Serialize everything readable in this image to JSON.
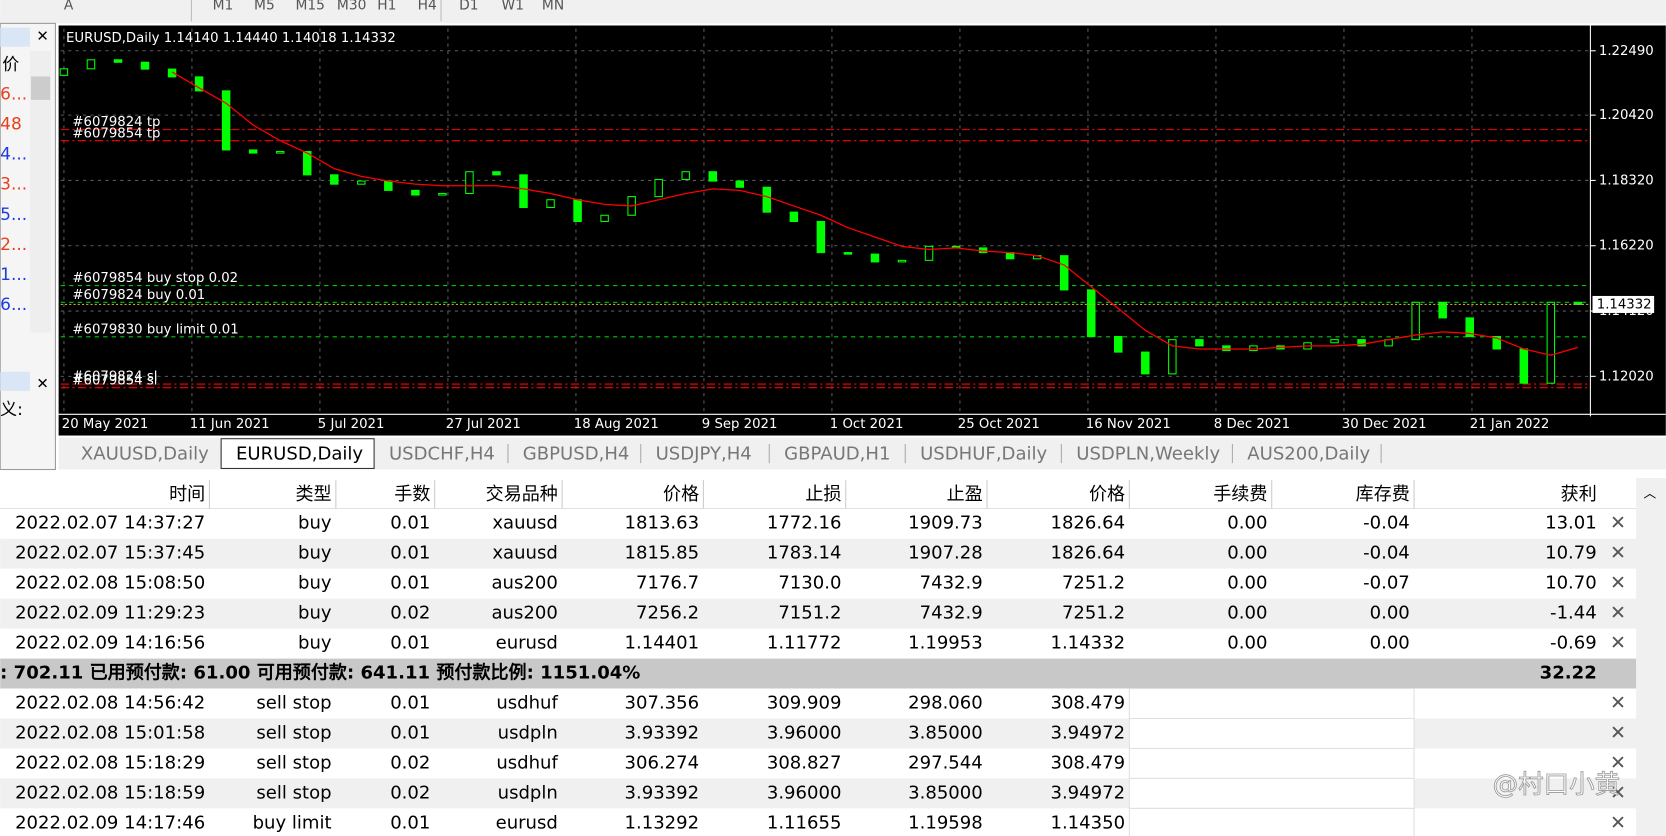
{
  "toolbar": {
    "items": [
      "A",
      "M1",
      "M5",
      "M15",
      "M30",
      "H1",
      "H4",
      "D1",
      "W1",
      "MN"
    ]
  },
  "left_panel": {
    "header": "价",
    "items": [
      {
        "text": "6...",
        "color": "#e8401c"
      },
      {
        "text": "48",
        "color": "#e8401c"
      },
      {
        "text": "4...",
        "color": "#1a3be0"
      },
      {
        "text": "3...",
        "color": "#e8401c"
      },
      {
        "text": "5...",
        "color": "#1a3be0"
      },
      {
        "text": "2...",
        "color": "#e8401c"
      },
      {
        "text": "1...",
        "color": "#1a3be0"
      },
      {
        "text": "6...",
        "color": "#1a3be0"
      }
    ],
    "footer": "义:"
  },
  "chart_data": {
    "type": "candlestick",
    "title": "EURUSD,Daily  1.14140 1.14440 1.14018 1.14332",
    "open": 1.217,
    "close": [
      1.2191,
      1.222,
      1.2212,
      1.219,
      1.2165,
      1.212,
      1.193,
      1.192,
      1.1925,
      1.185,
      1.182,
      1.183,
      1.18,
      1.1785,
      1.179,
      1.186,
      1.185,
      1.1745,
      1.177,
      1.17,
      1.172,
      1.178,
      1.1835,
      1.186,
      1.183,
      1.181,
      1.173,
      1.17,
      1.16,
      1.1595,
      1.157,
      1.1575,
      1.162,
      1.1615,
      1.16,
      1.158,
      1.159,
      1.148,
      1.133,
      1.128,
      1.121,
      1.132,
      1.13,
      1.1285,
      1.13,
      1.129,
      1.131,
      1.132,
      1.13,
      1.132,
      1.144,
      1.139,
      1.133,
      1.129,
      1.118,
      1.144,
      1.14332
    ],
    "ma": [
      null,
      null,
      null,
      null,
      1.2181,
      1.213,
      1.208,
      1.201,
      1.196,
      1.192,
      1.187,
      1.1845,
      1.183,
      1.182,
      1.1815,
      1.1815,
      1.1815,
      1.1805,
      1.179,
      1.177,
      1.1755,
      1.175,
      1.177,
      1.179,
      1.1805,
      1.18,
      1.178,
      1.175,
      1.172,
      1.168,
      1.165,
      1.162,
      1.161,
      1.1615,
      1.1605,
      1.16,
      1.159,
      1.156,
      1.149,
      1.142,
      1.135,
      1.13,
      1.129,
      1.129,
      1.129,
      1.1295,
      1.13,
      1.13,
      1.1305,
      1.132,
      1.1335,
      1.1345,
      1.134,
      1.1325,
      1.129,
      1.127,
      1.1295
    ],
    "up_color": "#00ff00",
    "down_color": "#00ff00",
    "ma_color": "#ff0000",
    "ylim": [
      1.108,
      1.232
    ],
    "yticks": [
      {
        "value": 1.2249,
        "label": "1.22490"
      },
      {
        "value": 1.2042,
        "label": "1.20420"
      },
      {
        "value": 1.1832,
        "label": "1.18320"
      },
      {
        "value": 1.1622,
        "label": "1.16220"
      },
      {
        "value": 1.1412,
        "label": "1.14120"
      },
      {
        "value": 1.1202,
        "label": "1.12020"
      }
    ],
    "x_labels": [
      "20 May 2021",
      "11 Jun 2021",
      "5 Jul 2021",
      "27 Jul 2021",
      "18 Aug 2021",
      "9 Sep 2021",
      "1 Oct 2021",
      "25 Oct 2021",
      "16 Nov 2021",
      "8 Dec 2021",
      "30 Dec 2021",
      "21 Jan 2022"
    ],
    "grid": true,
    "current_price": {
      "value": 1.14332,
      "label": "1.14332"
    },
    "order_lines": [
      {
        "label": "#6079824 tp",
        "price": 1.19953,
        "color": "#ff0000"
      },
      {
        "label": "#6079854 tp",
        "price": 1.19598,
        "color": "#ff0000"
      },
      {
        "label": "#6079854 buy stop 0.02",
        "price": 1.1494,
        "color": "#00c800"
      },
      {
        "label": "#6079824 buy 0.01",
        "price": 1.14401,
        "color": "#00c800"
      },
      {
        "label": "#6079830 buy limit 0.01",
        "price": 1.13292,
        "color": "#00c800"
      },
      {
        "label": "#6079824 sl",
        "price": 1.11772,
        "color": "#ff0000"
      },
      {
        "label": "#6079854 sl",
        "price": 1.11655,
        "color": "#ff0000"
      }
    ]
  },
  "tabs": {
    "items": [
      "XAUUSD,Daily",
      "EURUSD,Daily",
      "USDCHF,H4",
      "GBPUSD,H4",
      "USDJPY,H4",
      "GBPAUD,H1",
      "USDHUF,Daily",
      "USDPLN,Weekly",
      "AUS200,Daily"
    ],
    "active": 1
  },
  "table": {
    "headers": [
      "时间",
      "类型",
      "手数",
      "交易品种",
      "价格",
      "止损",
      "止盈",
      "价格",
      "手续费",
      "库存费",
      "获利"
    ],
    "rows": [
      [
        "2022.02.07 14:37:27",
        "buy",
        "0.01",
        "xauusd",
        "1813.63",
        "1772.16",
        "1909.73",
        "1826.64",
        "0.00",
        "-0.04",
        "13.01"
      ],
      [
        "2022.02.07 15:37:45",
        "buy",
        "0.01",
        "xauusd",
        "1815.85",
        "1783.14",
        "1907.28",
        "1826.64",
        "0.00",
        "-0.04",
        "10.79"
      ],
      [
        "2022.02.08 15:08:50",
        "buy",
        "0.01",
        "aus200",
        "7176.7",
        "7130.0",
        "7432.9",
        "7251.2",
        "0.00",
        "-0.07",
        "10.70"
      ],
      [
        "2022.02.09 11:29:23",
        "buy",
        "0.02",
        "aus200",
        "7256.2",
        "7151.2",
        "7432.9",
        "7251.2",
        "0.00",
        "0.00",
        "-1.44"
      ],
      [
        "2022.02.09 14:16:56",
        "buy",
        "0.01",
        "eurusd",
        "1.14401",
        "1.11772",
        "1.19953",
        "1.14332",
        "0.00",
        "0.00",
        "-0.69"
      ]
    ],
    "summary": {
      "text": ": 702.11  已用预付款: 61.00  可用预付款: 641.11  预付款比例: 1151.04%",
      "profit": "32.22"
    },
    "pending_rows": [
      [
        "2022.02.08 14:56:42",
        "sell stop",
        "0.01",
        "usdhuf",
        "307.356",
        "309.909",
        "298.060",
        "308.479"
      ],
      [
        "2022.02.08 15:01:58",
        "sell stop",
        "0.01",
        "usdpln",
        "3.93392",
        "3.96000",
        "3.85000",
        "3.94972"
      ],
      [
        "2022.02.08 15:18:29",
        "sell stop",
        "0.02",
        "usdhuf",
        "306.274",
        "308.827",
        "297.544",
        "308.479"
      ],
      [
        "2022.02.08 15:18:59",
        "sell stop",
        "0.02",
        "usdpln",
        "3.93392",
        "3.96000",
        "3.85000",
        "3.94972"
      ],
      [
        "2022.02.09 14:17:46",
        "buy limit",
        "0.01",
        "eurusd",
        "1.13292",
        "1.11655",
        "1.19598",
        "1.14350"
      ]
    ]
  },
  "watermark": "@村口小黄"
}
